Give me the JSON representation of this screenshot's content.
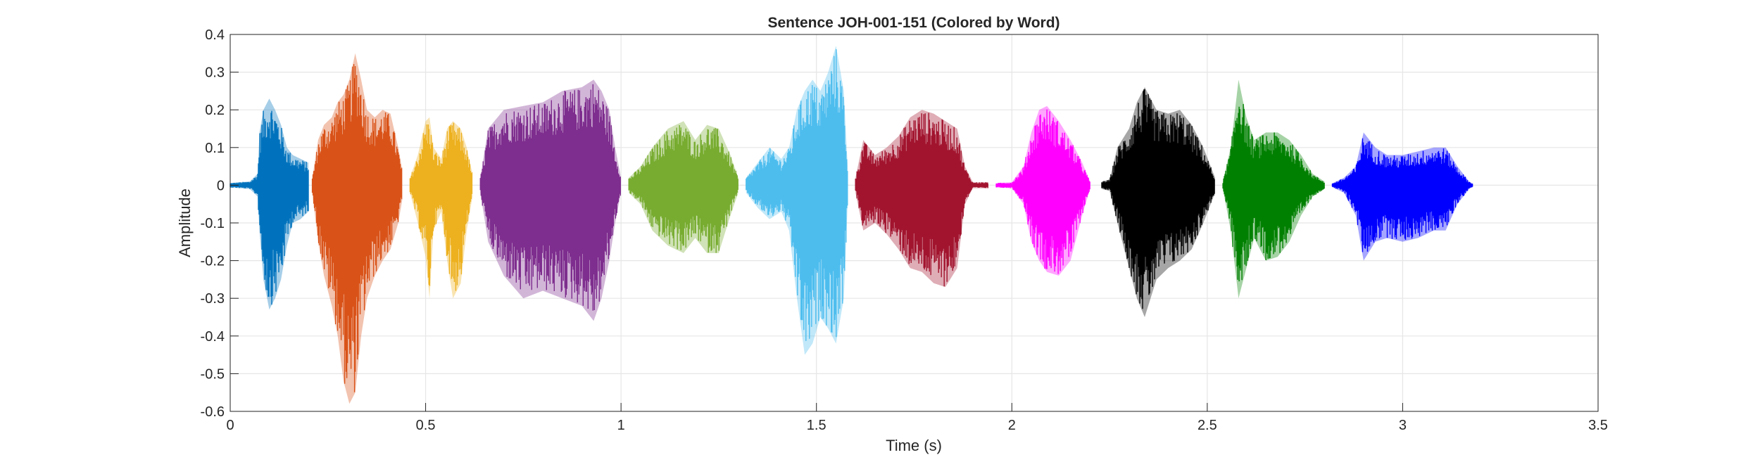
{
  "chart_data": {
    "type": "area",
    "title": "Sentence JOH-001-151 (Colored by Word)",
    "xlabel": "Time (s)",
    "ylabel": "Amplitude",
    "xlim": [
      0,
      3.5
    ],
    "ylim": [
      -0.6,
      0.4
    ],
    "xticks": [
      0,
      0.5,
      1,
      1.5,
      2,
      2.5,
      3,
      3.5
    ],
    "xtick_labels": [
      "0",
      "0.5",
      "1",
      "1.5",
      "2",
      "2.5",
      "3",
      "3.5"
    ],
    "yticks": [
      0.4,
      0.3,
      0.2,
      0.1,
      0,
      -0.1,
      -0.2,
      -0.3,
      -0.4,
      -0.5,
      -0.6
    ],
    "ytick_labels": [
      "0.4",
      "0.3",
      "0.2",
      "0.1",
      "0",
      "-0.1",
      "-0.2",
      "-0.3",
      "-0.4",
      "-0.5",
      "-0.6"
    ],
    "grid": true,
    "segments": [
      {
        "word": 1,
        "color": "#0072BD",
        "start": 0.0,
        "end": 0.2,
        "env": [
          [
            0.0,
            0.006,
            -0.006
          ],
          [
            0.05,
            0.01,
            -0.01
          ],
          [
            0.07,
            0.03,
            -0.03
          ],
          [
            0.075,
            0.14,
            -0.12
          ],
          [
            0.085,
            0.2,
            -0.25
          ],
          [
            0.1,
            0.23,
            -0.33
          ],
          [
            0.115,
            0.2,
            -0.3
          ],
          [
            0.13,
            0.16,
            -0.25
          ],
          [
            0.145,
            0.1,
            -0.16
          ],
          [
            0.16,
            0.08,
            -0.1
          ],
          [
            0.18,
            0.07,
            -0.09
          ],
          [
            0.2,
            0.06,
            -0.07
          ]
        ]
      },
      {
        "word": 2,
        "color": "#D95319",
        "start": 0.21,
        "end": 0.44,
        "env": [
          [
            0.21,
            0.02,
            -0.02
          ],
          [
            0.225,
            0.12,
            -0.15
          ],
          [
            0.24,
            0.16,
            -0.24
          ],
          [
            0.26,
            0.18,
            -0.32
          ],
          [
            0.275,
            0.22,
            -0.4
          ],
          [
            0.29,
            0.24,
            -0.52
          ],
          [
            0.305,
            0.28,
            -0.58
          ],
          [
            0.32,
            0.35,
            -0.55
          ],
          [
            0.335,
            0.28,
            -0.4
          ],
          [
            0.35,
            0.2,
            -0.3
          ],
          [
            0.37,
            0.18,
            -0.24
          ],
          [
            0.39,
            0.2,
            -0.2
          ],
          [
            0.41,
            0.19,
            -0.17
          ],
          [
            0.43,
            0.1,
            -0.1
          ],
          [
            0.44,
            0.04,
            -0.04
          ]
        ]
      },
      {
        "word": 3,
        "color": "#EDB120",
        "start": 0.46,
        "end": 0.62,
        "env": [
          [
            0.46,
            0.02,
            -0.02
          ],
          [
            0.48,
            0.08,
            -0.1
          ],
          [
            0.5,
            0.17,
            -0.19
          ],
          [
            0.51,
            0.18,
            -0.3
          ],
          [
            0.52,
            0.1,
            -0.12
          ],
          [
            0.54,
            0.07,
            -0.07
          ],
          [
            0.555,
            0.15,
            -0.2
          ],
          [
            0.57,
            0.17,
            -0.3
          ],
          [
            0.59,
            0.15,
            -0.26
          ],
          [
            0.605,
            0.1,
            -0.12
          ],
          [
            0.62,
            0.03,
            -0.03
          ]
        ]
      },
      {
        "word": 4,
        "color": "#7E2F8E",
        "start": 0.64,
        "end": 1.0,
        "env": [
          [
            0.64,
            0.02,
            -0.02
          ],
          [
            0.66,
            0.15,
            -0.15
          ],
          [
            0.7,
            0.2,
            -0.24
          ],
          [
            0.75,
            0.21,
            -0.3
          ],
          [
            0.8,
            0.22,
            -0.28
          ],
          [
            0.85,
            0.25,
            -0.3
          ],
          [
            0.9,
            0.26,
            -0.32
          ],
          [
            0.93,
            0.28,
            -0.36
          ],
          [
            0.95,
            0.25,
            -0.3
          ],
          [
            0.97,
            0.2,
            -0.2
          ],
          [
            0.985,
            0.1,
            -0.1
          ],
          [
            1.0,
            0.02,
            -0.02
          ]
        ]
      },
      {
        "word": 5,
        "color": "#77AC30",
        "start": 1.02,
        "end": 1.3,
        "env": [
          [
            1.02,
            0.02,
            -0.02
          ],
          [
            1.05,
            0.05,
            -0.05
          ],
          [
            1.08,
            0.1,
            -0.12
          ],
          [
            1.12,
            0.15,
            -0.16
          ],
          [
            1.16,
            0.17,
            -0.18
          ],
          [
            1.19,
            0.12,
            -0.14
          ],
          [
            1.22,
            0.16,
            -0.18
          ],
          [
            1.25,
            0.15,
            -0.18
          ],
          [
            1.28,
            0.08,
            -0.08
          ],
          [
            1.3,
            0.02,
            -0.02
          ]
        ]
      },
      {
        "word": 6,
        "color": "#4DBEEE",
        "start": 1.32,
        "end": 1.58,
        "env": [
          [
            1.32,
            0.02,
            -0.02
          ],
          [
            1.35,
            0.06,
            -0.06
          ],
          [
            1.38,
            0.1,
            -0.09
          ],
          [
            1.41,
            0.07,
            -0.07
          ],
          [
            1.43,
            0.1,
            -0.12
          ],
          [
            1.45,
            0.2,
            -0.3
          ],
          [
            1.47,
            0.25,
            -0.45
          ],
          [
            1.49,
            0.28,
            -0.42
          ],
          [
            1.51,
            0.25,
            -0.35
          ],
          [
            1.53,
            0.3,
            -0.38
          ],
          [
            1.55,
            0.37,
            -0.42
          ],
          [
            1.57,
            0.25,
            -0.3
          ],
          [
            1.58,
            0.05,
            -0.05
          ]
        ]
      },
      {
        "word": 7,
        "color": "#A2142F",
        "start": 1.6,
        "end": 1.94,
        "env": [
          [
            1.6,
            0.02,
            -0.02
          ],
          [
            1.62,
            0.12,
            -0.12
          ],
          [
            1.65,
            0.08,
            -0.1
          ],
          [
            1.68,
            0.1,
            -0.13
          ],
          [
            1.71,
            0.13,
            -0.17
          ],
          [
            1.74,
            0.18,
            -0.22
          ],
          [
            1.77,
            0.2,
            -0.23
          ],
          [
            1.8,
            0.19,
            -0.26
          ],
          [
            1.83,
            0.17,
            -0.27
          ],
          [
            1.86,
            0.15,
            -0.22
          ],
          [
            1.88,
            0.05,
            -0.05
          ],
          [
            1.9,
            0.008,
            -0.008
          ],
          [
            1.94,
            0.008,
            -0.008
          ]
        ]
      },
      {
        "word": 8,
        "color": "#FF00FF",
        "start": 1.96,
        "end": 2.2,
        "env": [
          [
            1.96,
            0.006,
            -0.006
          ],
          [
            2.0,
            0.008,
            -0.008
          ],
          [
            2.03,
            0.05,
            -0.05
          ],
          [
            2.05,
            0.14,
            -0.15
          ],
          [
            2.07,
            0.2,
            -0.2
          ],
          [
            2.09,
            0.21,
            -0.23
          ],
          [
            2.12,
            0.17,
            -0.24
          ],
          [
            2.15,
            0.12,
            -0.2
          ],
          [
            2.18,
            0.06,
            -0.08
          ],
          [
            2.2,
            0.01,
            -0.01
          ]
        ]
      },
      {
        "word": 9,
        "color": "#000000",
        "start": 2.23,
        "end": 2.52,
        "env": [
          [
            2.23,
            0.01,
            -0.01
          ],
          [
            2.25,
            0.015,
            -0.015
          ],
          [
            2.27,
            0.1,
            -0.1
          ],
          [
            2.3,
            0.15,
            -0.22
          ],
          [
            2.32,
            0.22,
            -0.3
          ],
          [
            2.34,
            0.26,
            -0.35
          ],
          [
            2.37,
            0.2,
            -0.25
          ],
          [
            2.4,
            0.19,
            -0.22
          ],
          [
            2.43,
            0.2,
            -0.2
          ],
          [
            2.46,
            0.16,
            -0.17
          ],
          [
            2.49,
            0.1,
            -0.1
          ],
          [
            2.52,
            0.02,
            -0.02
          ]
        ]
      },
      {
        "word": 10,
        "color": "#008000",
        "start": 2.54,
        "end": 2.8,
        "env": [
          [
            2.54,
            0.01,
            -0.01
          ],
          [
            2.56,
            0.1,
            -0.12
          ],
          [
            2.58,
            0.28,
            -0.3
          ],
          [
            2.6,
            0.18,
            -0.22
          ],
          [
            2.62,
            0.12,
            -0.14
          ],
          [
            2.65,
            0.14,
            -0.2
          ],
          [
            2.68,
            0.14,
            -0.19
          ],
          [
            2.71,
            0.12,
            -0.15
          ],
          [
            2.74,
            0.08,
            -0.08
          ],
          [
            2.77,
            0.03,
            -0.03
          ],
          [
            2.8,
            0.01,
            -0.01
          ]
        ]
      },
      {
        "word": 11,
        "color": "#0000FF",
        "start": 2.82,
        "end": 3.18,
        "env": [
          [
            2.82,
            0.005,
            -0.005
          ],
          [
            2.85,
            0.02,
            -0.02
          ],
          [
            2.88,
            0.05,
            -0.08
          ],
          [
            2.9,
            0.14,
            -0.2
          ],
          [
            2.93,
            0.1,
            -0.15
          ],
          [
            2.96,
            0.08,
            -0.14
          ],
          [
            3.0,
            0.08,
            -0.15
          ],
          [
            3.04,
            0.09,
            -0.14
          ],
          [
            3.08,
            0.1,
            -0.12
          ],
          [
            3.11,
            0.1,
            -0.12
          ],
          [
            3.14,
            0.05,
            -0.05
          ],
          [
            3.17,
            0.01,
            -0.01
          ],
          [
            3.18,
            0.004,
            -0.004
          ]
        ]
      }
    ]
  }
}
